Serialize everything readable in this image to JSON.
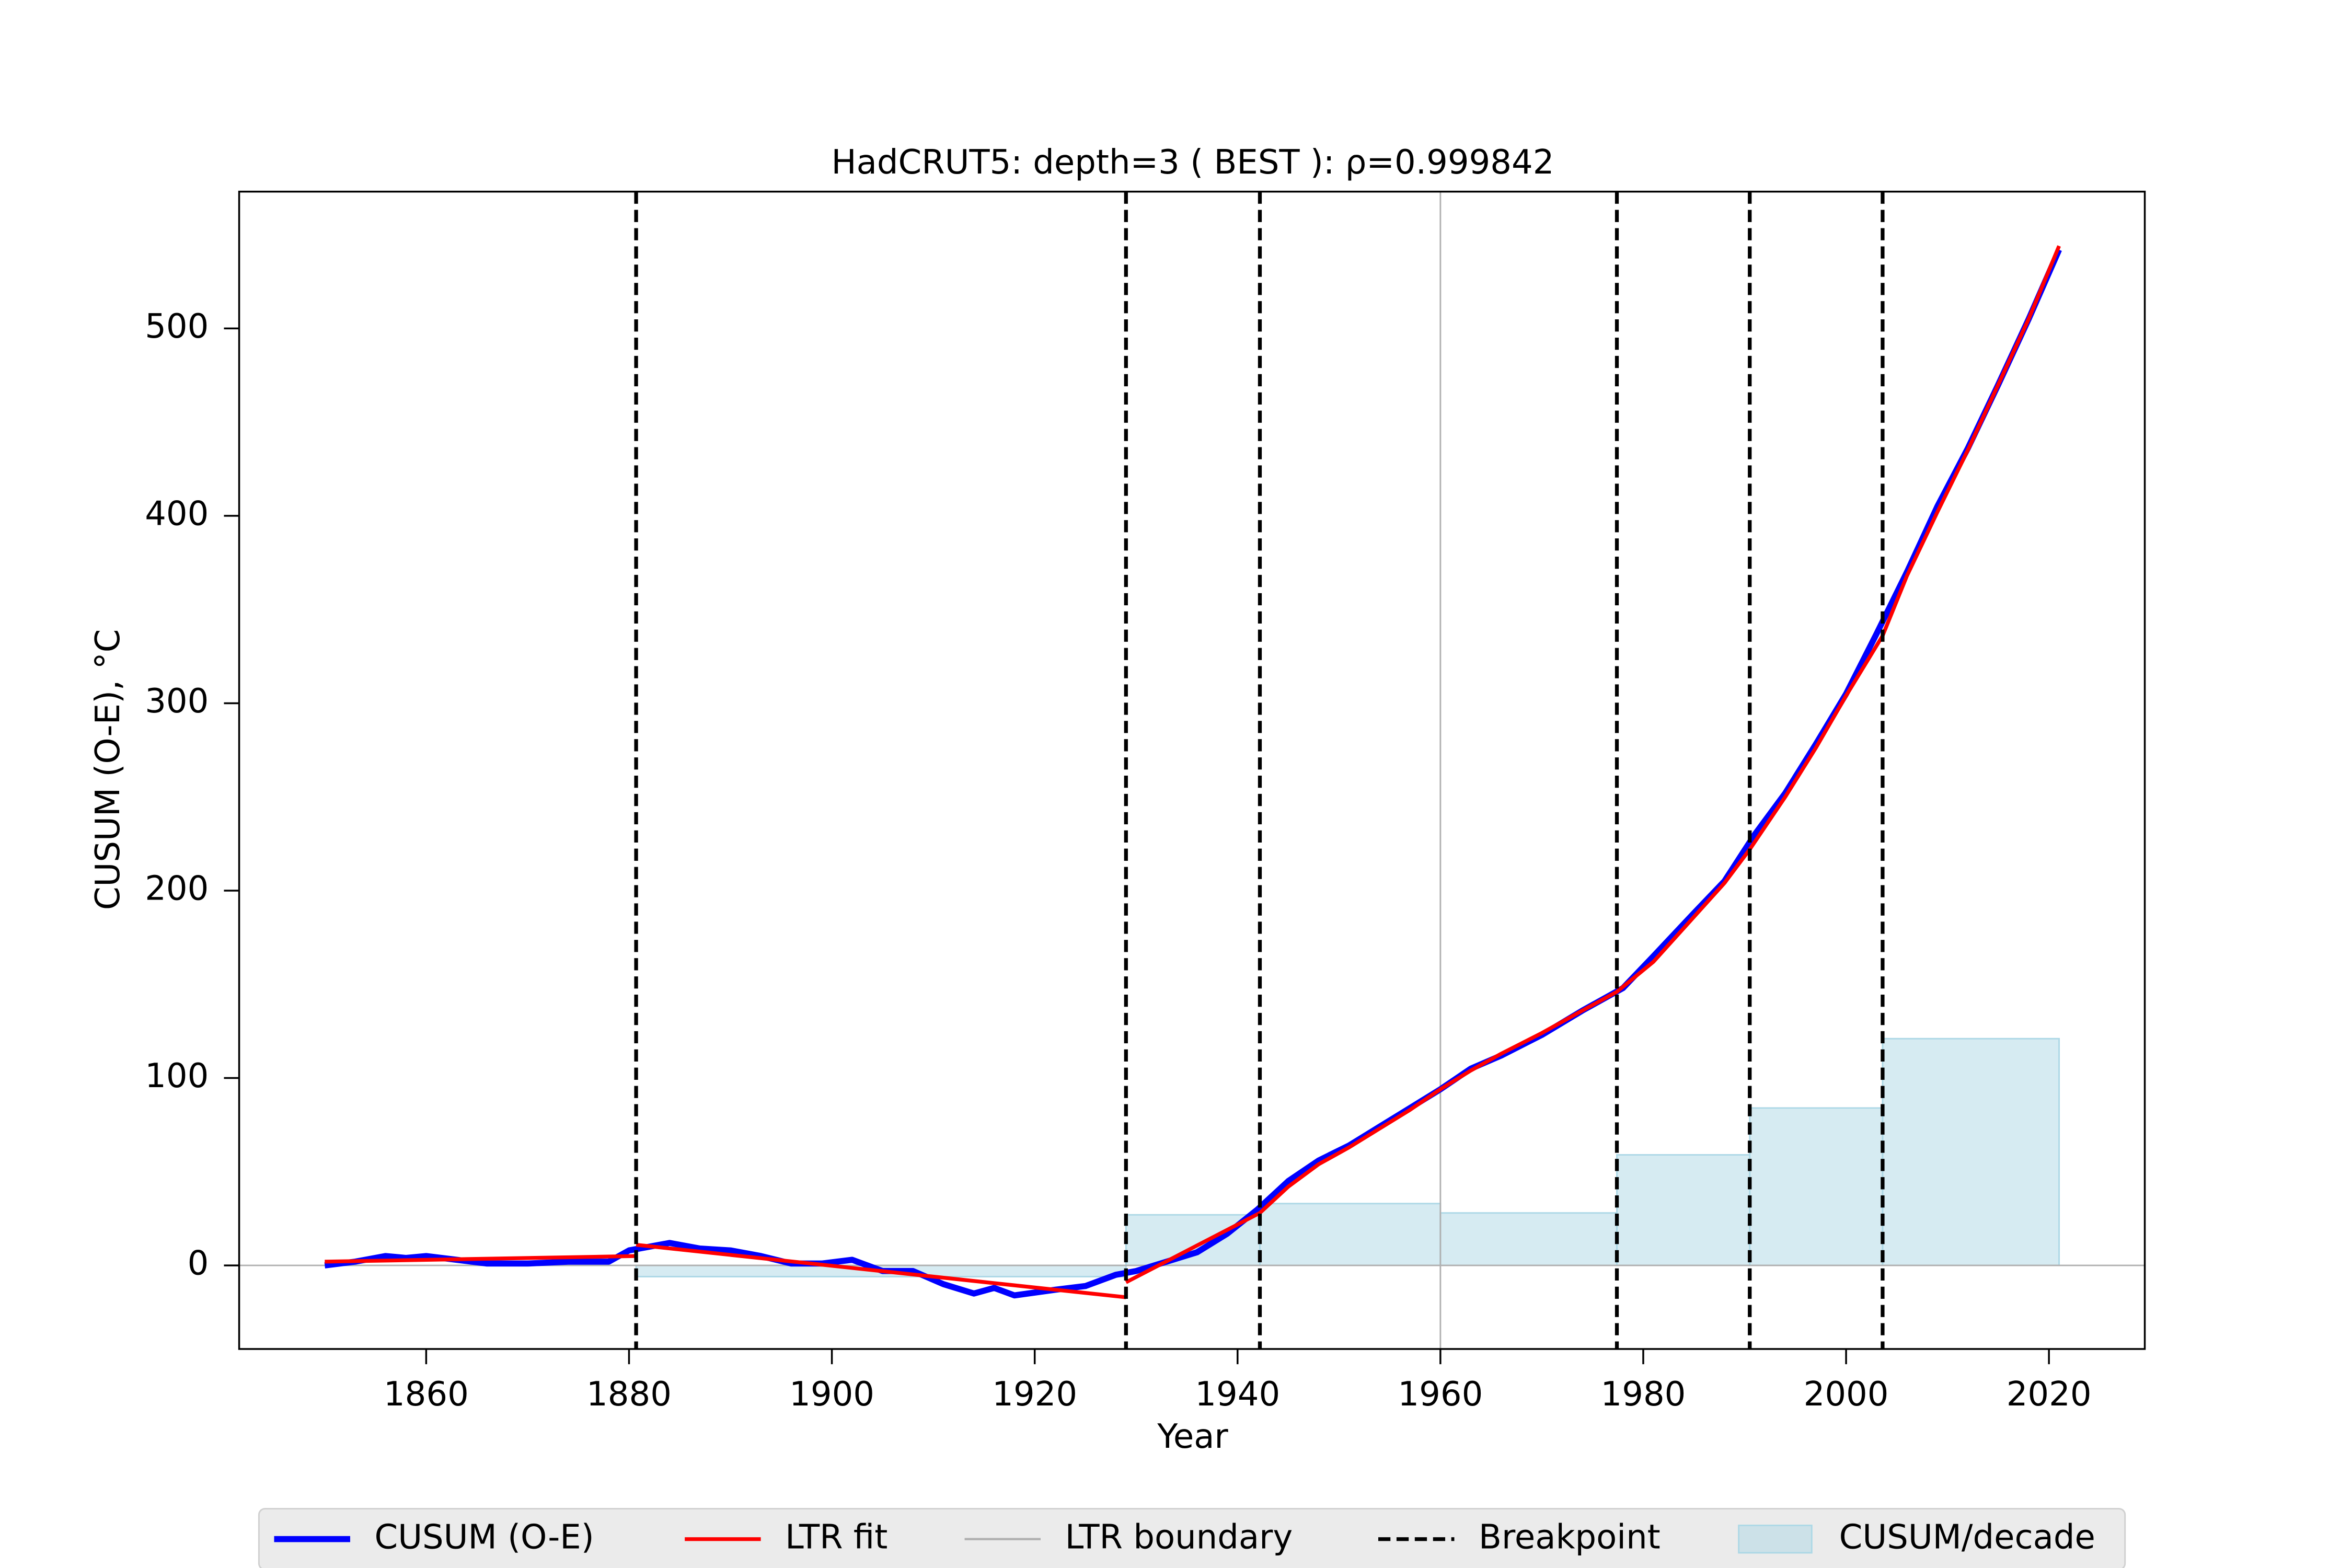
{
  "chart_data": {
    "type": "line",
    "title": "HadCRUT5: depth=3 ( BEST ): ρ=0.999842",
    "x_label": "Year",
    "y_label": "CUSUM (O-E), °C",
    "xlim": [
      1841.56,
      2029.45
    ],
    "ylim": [
      -44.6,
      573
    ],
    "xticks": [
      1860,
      1880,
      1900,
      1920,
      1940,
      1960,
      1980,
      2000,
      2020
    ],
    "yticks": [
      0,
      100,
      200,
      300,
      400,
      500
    ],
    "legend": "bottom",
    "series": [
      {
        "name": "CUSUM (O-E)",
        "color": "#0000ff",
        "x": [
          1850,
          1853,
          1856,
          1858,
          1860,
          1863,
          1866,
          1870,
          1874,
          1878,
          1880,
          1882,
          1884,
          1887,
          1890,
          1893,
          1896,
          1899,
          1902,
          1905,
          1908,
          1911,
          1914,
          1916,
          1918,
          1922,
          1925,
          1928,
          1930,
          1933,
          1936,
          1939,
          1942,
          1945,
          1948,
          1951,
          1954,
          1957,
          1960,
          1963,
          1966,
          1970,
          1974,
          1978,
          1981,
          1985,
          1988,
          1991,
          1994,
          1997,
          2000,
          2003,
          2006,
          2009,
          2012,
          2015,
          2018,
          2021
        ],
        "values": [
          0,
          2,
          5,
          4,
          5,
          3,
          1,
          1,
          2,
          2,
          8,
          10,
          12,
          9,
          8,
          5,
          1,
          1,
          3,
          -3,
          -3,
          -10,
          -15,
          -12,
          -16,
          -13,
          -11,
          -5,
          -3,
          2,
          7,
          17,
          30,
          45,
          56,
          64,
          74,
          84,
          94,
          105,
          112,
          123,
          136,
          148,
          165,
          188,
          205,
          230,
          252,
          278,
          305,
          337,
          370,
          405,
          436,
          470,
          505,
          542
        ]
      },
      {
        "name": "LTR fit",
        "color": "#ff0000",
        "x": [
          1850,
          1880.7,
          1880.7,
          1880.7,
          1929,
          1929,
          1929,
          1942.2,
          1945,
          1948,
          1951,
          1954,
          1957,
          1960,
          1963,
          1966,
          1970,
          1974,
          1977.4,
          1981,
          1985,
          1988,
          1990.5,
          1994,
          1997,
          2000,
          2003.6,
          2006,
          2009,
          2012,
          2015,
          2018,
          2021
        ],
        "values": [
          2,
          5,
          null,
          11,
          -17,
          null,
          -9,
          28,
          42,
          54,
          63,
          73,
          83,
          94,
          104,
          113,
          124,
          136,
          146,
          162,
          186,
          204,
          222,
          250,
          276,
          304,
          336,
          368,
          402,
          435,
          470,
          505,
          544
        ]
      }
    ],
    "ltr_boundary": {
      "name": "LTR boundary",
      "color": "#b0b0b0",
      "values": [
        1960
      ]
    },
    "breakpoints": {
      "name": "Breakpoint",
      "color": "#000000",
      "values": [
        1880.7,
        1929.0,
        1942.2,
        1977.4,
        1990.5,
        2003.6
      ]
    },
    "decade_bars": {
      "name": "CUSUM/decade",
      "color": "#add8e6",
      "bins": [
        1880.7,
        1929.0,
        1942.2,
        1960,
        1977.4,
        1990.5,
        2003.6,
        2021
      ],
      "values": [
        -6,
        27,
        33,
        28,
        59,
        84,
        121
      ]
    }
  }
}
